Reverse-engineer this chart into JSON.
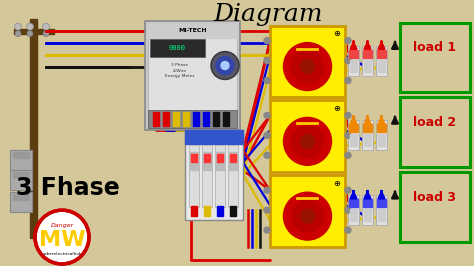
{
  "title": "Diagram",
  "subtitle": "3 Fhase",
  "bg_color": "#d4c89a",
  "title_color": "#000000",
  "load_labels": [
    "load 1",
    "load 2",
    "load 3"
  ],
  "load_box_color": "#009900",
  "load_label_color": "#cc0000",
  "wire_red": "#dd0000",
  "wire_blue": "#0000dd",
  "wire_yellow": "#ddbb00",
  "wire_black": "#111111",
  "switch_fill": "#ffee00",
  "switch_border": "#cc9900",
  "switch_circle": "#cc0000",
  "switch_inner": "#aa0000",
  "meter_body": "#c8c8c8",
  "meter_face": "#e0e0e0",
  "breaker_body": "#e8e8e8",
  "breaker_blue_top": "#3355cc",
  "logo_yellow": "#ffcc00",
  "logo_red_circle": "#cc0000",
  "logo_text_color": "#ffaa00",
  "pole_color": "#5c3d10",
  "transformer_color": "#aaaaaa",
  "arrow_colors_load1": [
    "#dd0000",
    "#dd0000",
    "#dd0000",
    "#111111"
  ],
  "arrow_colors_load2": [
    "#ee8800",
    "#ee8800",
    "#ee8800",
    "#111111"
  ],
  "arrow_colors_load3": [
    "#0000dd",
    "#0000dd",
    "#0000dd",
    "#111111"
  ],
  "mcb_colors_load1": [
    "#ee4444",
    "#ee4444",
    "#ee4444"
  ],
  "mcb_colors_load2": [
    "#ee8800",
    "#ee8800",
    "#ee8800"
  ],
  "mcb_colors_load3": [
    "#4444ee",
    "#4444ee",
    "#4444ee"
  ]
}
